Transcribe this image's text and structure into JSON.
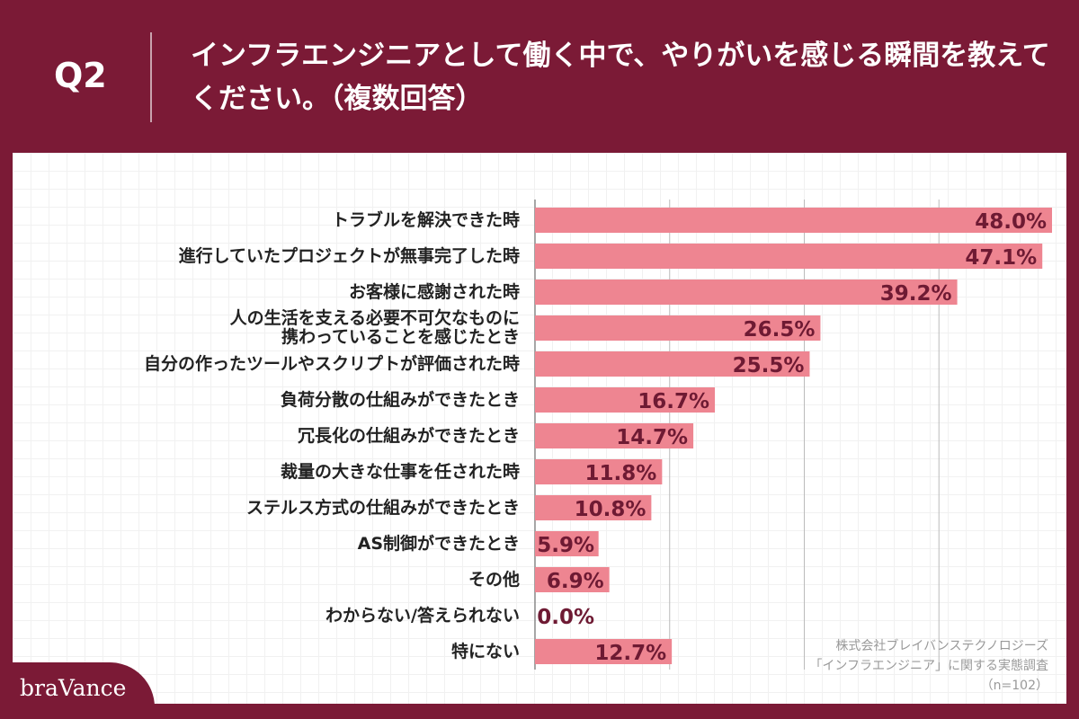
{
  "header": {
    "q": "Q2",
    "title": "インフラエンジニアとして働く中で、やりがいを感じる瞬間を教えてください。（複数回答）"
  },
  "chart_data": {
    "type": "bar",
    "orientation": "horizontal",
    "categories": [
      "トラブルを解決できた時",
      "進行していたプロジェクトが無事完了した時",
      "お客様に感謝された時",
      "人の生活を支える必要不可欠なものに\n携わっていることを感じたとき",
      "自分の作ったツールやスクリプトが評価された時",
      "負荷分散の仕組みができたとき",
      "冗長化の仕組みができたとき",
      "裁量の大きな仕事を任された時",
      "ステルス方式の仕組みができたとき",
      "AS制御ができたとき",
      "その他",
      "わからない/答えられない",
      "特にない"
    ],
    "values": [
      48.0,
      47.1,
      39.2,
      26.5,
      25.5,
      16.7,
      14.7,
      11.8,
      10.8,
      5.9,
      6.9,
      0.0,
      12.7
    ],
    "data_labels": [
      "48.0%",
      "47.1%",
      "39.2%",
      "26.5%",
      "25.5%",
      "16.7%",
      "14.7%",
      "11.8%",
      "10.8%",
      "5.9%",
      "6.9%",
      "0.0%",
      "12.7%"
    ],
    "xlim": [
      0,
      50
    ],
    "grid": true,
    "colors": {
      "bar": "#ee8591",
      "label": "#6e1a33"
    }
  },
  "source": {
    "line1": "株式会社ブレイバンステクノロジーズ",
    "line2": "「インフラエンジニア」に関する実態調査",
    "line3": "（n=102）"
  },
  "logo": "braVance"
}
